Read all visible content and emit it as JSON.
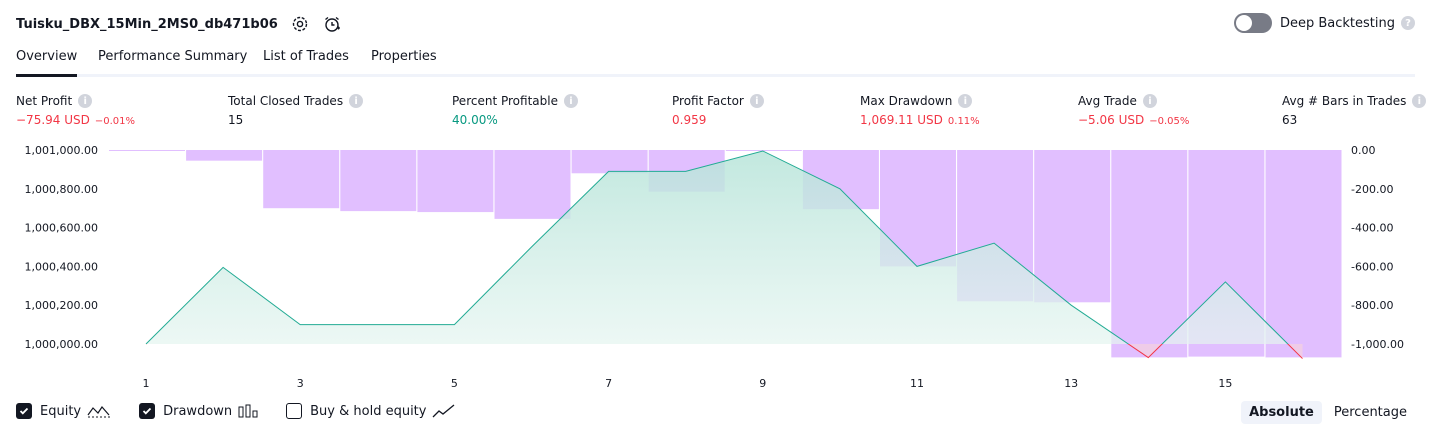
{
  "header": {
    "strategy_name": "Tuisku_DBX_15Min_2MS0_db471b06",
    "deep_backtesting_label": "Deep Backtesting",
    "deep_backtesting_enabled": false
  },
  "tabs": [
    {
      "label": "Overview",
      "active": true
    },
    {
      "label": "Performance Summary",
      "active": false
    },
    {
      "label": "List of Trades",
      "active": false
    },
    {
      "label": "Properties",
      "active": false
    }
  ],
  "metrics": {
    "net_profit": {
      "label": "Net Profit",
      "value": "−75.94 USD",
      "pct": "−0.01%"
    },
    "total_closed_trades": {
      "label": "Total Closed Trades",
      "value": "15"
    },
    "percent_profitable": {
      "label": "Percent Profitable",
      "value": "40.00%"
    },
    "profit_factor": {
      "label": "Profit Factor",
      "value": "0.959"
    },
    "max_drawdown": {
      "label": "Max Drawdown",
      "value": "1,069.11 USD",
      "pct": "0.11%"
    },
    "avg_trade": {
      "label": "Avg Trade",
      "value": "−5.06 USD",
      "pct": "−0.05%"
    },
    "avg_bars": {
      "label": "Avg # Bars in Trades",
      "value": "63"
    }
  },
  "legend": {
    "equity": {
      "label": "Equity",
      "checked": true
    },
    "drawdown": {
      "label": "Drawdown",
      "checked": true
    },
    "buy_hold": {
      "label": "Buy & hold equity",
      "checked": false
    }
  },
  "mode": {
    "absolute": "Absolute",
    "percentage": "Percentage",
    "selected": "Absolute"
  },
  "colors": {
    "equity_line": "#22ab94",
    "equity_fill": "#d4efe8",
    "equity_negative": "#f23645",
    "drawdown_fill": "#e1bfff",
    "text_red": "#f23645",
    "text_green": "#089981"
  },
  "chart_data": {
    "type": "area",
    "x": [
      1,
      2,
      3,
      4,
      5,
      6,
      7,
      8,
      9,
      10,
      11,
      12,
      13,
      14,
      15,
      16
    ],
    "x_tick_labels": [
      "1",
      "3",
      "5",
      "7",
      "9",
      "11",
      "13",
      "15"
    ],
    "left_axis": {
      "ticks": [
        "1,000,000.00",
        "1,000,200.00",
        "1,000,400.00",
        "1,000,600.00",
        "1,000,800.00",
        "1,001,000.00"
      ],
      "ylim": [
        1000000,
        1001000
      ]
    },
    "right_axis": {
      "ticks": [
        "0.00",
        "-200.00",
        "-400.00",
        "-600.00",
        "-800.00",
        "-1,000.00"
      ],
      "ylim": [
        -1000,
        0
      ]
    },
    "series": [
      {
        "name": "Equity",
        "kind": "line",
        "axis": "left",
        "values": [
          1000000,
          1000395,
          1000100,
          1000100,
          1000100,
          1000500,
          1000890,
          1000890,
          1000995,
          1000800,
          1000400,
          1000520,
          1000200,
          999930,
          1000320,
          999925
        ]
      },
      {
        "name": "Drawdown",
        "kind": "bar",
        "axis": "right",
        "values": [
          -5,
          -55,
          -300,
          -315,
          -320,
          -355,
          -120,
          -215,
          -5,
          -305,
          -600,
          -780,
          -785,
          -1069,
          -1065,
          -1069
        ]
      }
    ]
  }
}
